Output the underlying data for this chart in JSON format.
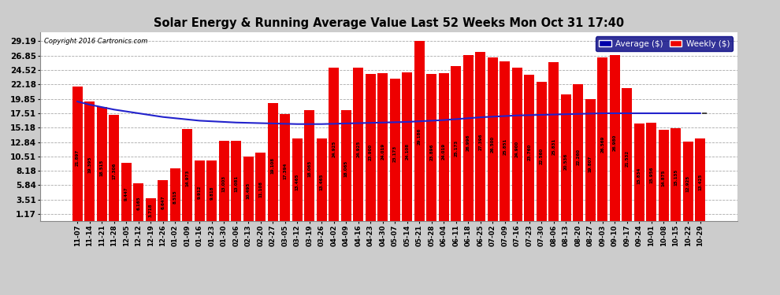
{
  "title": "Solar Energy & Running Average Value Last 52 Weeks Mon Oct 31 17:40",
  "copyright": "Copyright 2016 Cartronics.com",
  "bar_color": "#ee0000",
  "avg_line_color": "#2222cc",
  "background_color": "#cccccc",
  "plot_bg_color": "#ffffff",
  "grid_color": "#aaaaaa",
  "yticks": [
    1.17,
    3.51,
    5.84,
    8.18,
    10.51,
    12.84,
    15.18,
    17.51,
    19.85,
    22.18,
    24.52,
    26.85,
    29.19
  ],
  "ymin": 0.0,
  "ymax": 30.6,
  "legend_avg_color": "#0000aa",
  "legend_weekly_color": "#ee0000",
  "categories": [
    "11-07",
    "11-14",
    "11-21",
    "11-28",
    "12-05",
    "12-12",
    "12-19",
    "12-26",
    "01-02",
    "01-09",
    "01-16",
    "01-23",
    "01-30",
    "02-06",
    "02-13",
    "02-20",
    "02-27",
    "03-05",
    "03-12",
    "03-19",
    "03-26",
    "04-02",
    "04-09",
    "04-16",
    "04-23",
    "04-30",
    "05-07",
    "05-14",
    "05-21",
    "05-28",
    "06-04",
    "06-11",
    "06-18",
    "06-25",
    "07-02",
    "07-09",
    "07-16",
    "07-23",
    "07-30",
    "08-06",
    "08-13",
    "08-20",
    "08-27",
    "09-03",
    "09-10",
    "09-17",
    "09-24",
    "10-01",
    "10-08",
    "10-15",
    "10-22",
    "10-29"
  ],
  "values": [
    21.897,
    19.395,
    18.515,
    17.306,
    9.447,
    6.165,
    3.718,
    6.647,
    8.515,
    14.973,
    9.912,
    9.818,
    13.003,
    13.081,
    10.495,
    11.108,
    19.108,
    17.394,
    13.465,
    18.065,
    13.465,
    24.925,
    18.065,
    24.925,
    23.9,
    24.019,
    23.173,
    24.108,
    29.186,
    23.896,
    24.019,
    25.173,
    26.996,
    27.396,
    26.5,
    25.851,
    24.9,
    23.76,
    22.56,
    25.831,
    20.536,
    22.26,
    19.807,
    26.569,
    26.98,
    21.532,
    15.834,
    15.956,
    14.875,
    15.135,
    12.925,
    13.425
  ],
  "avg_values": [
    19.4,
    18.9,
    18.5,
    18.1,
    17.8,
    17.5,
    17.2,
    16.9,
    16.7,
    16.5,
    16.3,
    16.2,
    16.1,
    16.0,
    15.95,
    15.9,
    15.85,
    15.8,
    15.75,
    15.75,
    15.75,
    15.8,
    15.85,
    15.9,
    15.95,
    16.0,
    16.05,
    16.1,
    16.2,
    16.3,
    16.4,
    16.55,
    16.7,
    16.85,
    16.95,
    17.05,
    17.15,
    17.2,
    17.25,
    17.3,
    17.35,
    17.4,
    17.45,
    17.5,
    17.5,
    17.5,
    17.5,
    17.5,
    17.5,
    17.5,
    17.5,
    17.5
  ]
}
